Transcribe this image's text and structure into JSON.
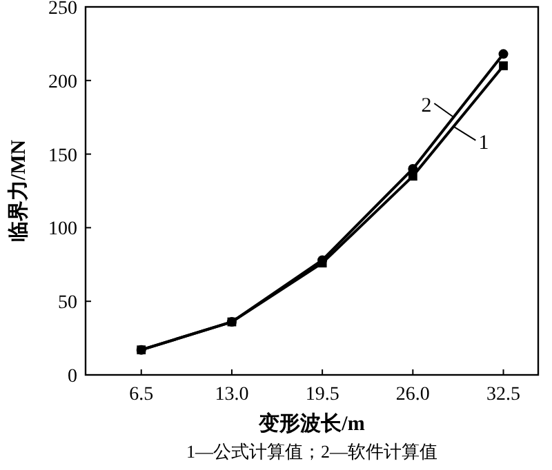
{
  "chart_data": {
    "type": "line",
    "xlabel": "变形波长/m",
    "ylabel": "临界力/MN",
    "x": [
      6.5,
      13.0,
      19.5,
      26.0,
      32.5
    ],
    "xlim": [
      2.5,
      35
    ],
    "xticks": [
      {
        "value": 6.5,
        "label": "6.5"
      },
      {
        "value": 13.0,
        "label": "13.0"
      },
      {
        "value": 19.5,
        "label": "19.5"
      },
      {
        "value": 26.0,
        "label": "26.0"
      },
      {
        "value": 32.5,
        "label": "32.5"
      }
    ],
    "ylim": [
      0,
      250
    ],
    "yticks": [
      0,
      50,
      100,
      150,
      200,
      250
    ],
    "grid": false,
    "legend": "right",
    "series": [
      {
        "name": "1",
        "color": "#000000",
        "marker": "square",
        "values": [
          17,
          36,
          76,
          135,
          210
        ]
      },
      {
        "name": "2",
        "color": "#000000",
        "marker": "circle",
        "values": [
          17,
          36,
          78,
          140,
          218
        ]
      }
    ],
    "annotations": [
      "1—公式计算值；2—软件计算值"
    ]
  }
}
